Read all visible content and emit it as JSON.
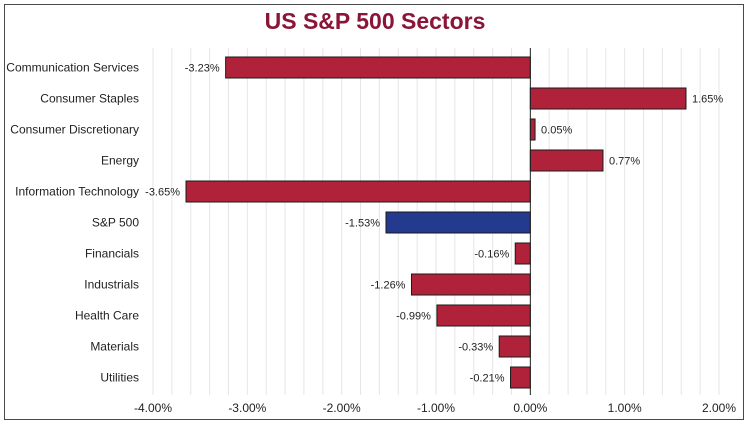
{
  "colors": {
    "title": "#8a1538",
    "bar": "#b0213a",
    "highlight_bar": "#233a8f",
    "bar_border": "#1a1a1a",
    "grid": "#e6e6e6",
    "zero_line": "#222222"
  },
  "chart_data": {
    "type": "bar",
    "orientation": "horizontal",
    "title": "US S&P 500 Sectors",
    "xlabel": "",
    "ylabel": "",
    "categories": [
      "Communication Services",
      "Consumer Staples",
      "Consumer Discretionary",
      "Energy",
      "Information Technology",
      "S&P 500",
      "Financials",
      "Industrials",
      "Health Care",
      "Materials",
      "Utilities"
    ],
    "values": [
      -3.23,
      1.65,
      0.05,
      0.77,
      -3.65,
      -1.53,
      -0.16,
      -1.26,
      -0.99,
      -0.33,
      -0.21
    ],
    "data_labels": [
      "-3.23%",
      "1.65%",
      "0.05%",
      "0.77%",
      "-3.65%",
      "-1.53%",
      "-0.16%",
      "-1.26%",
      "-0.99%",
      "-0.33%",
      "-0.21%"
    ],
    "highlight_category": "S&P 500",
    "xlim": [
      -4,
      2
    ],
    "x_ticks": [
      -4,
      -3,
      -2,
      -1,
      0,
      1,
      2
    ],
    "x_tick_labels": [
      "-4.00%",
      "-3.00%",
      "-2.00%",
      "-1.00%",
      "0.00%",
      "1.00%",
      "2.00%"
    ],
    "grid": "vertical",
    "legend": "none"
  }
}
